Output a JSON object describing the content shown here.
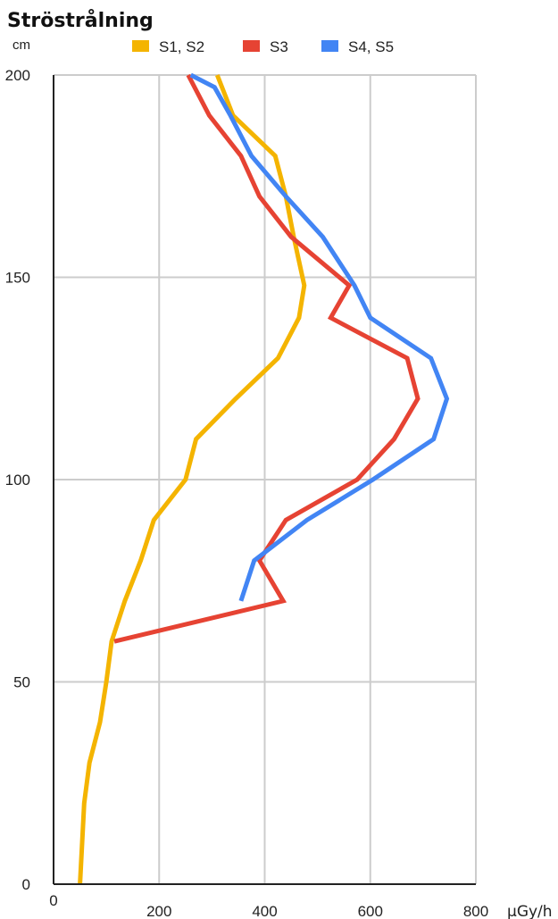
{
  "chart_data": {
    "type": "line",
    "title": "Ströstrålning",
    "ylabel": "cm",
    "xlabel": "µGy/h",
    "xlim": [
      0,
      800
    ],
    "ylim": [
      0,
      200
    ],
    "x_ticks": [
      0,
      200,
      400,
      600,
      800
    ],
    "y_ticks": [
      0,
      50,
      100,
      150,
      200
    ],
    "grid": true,
    "legend_position": "top",
    "series": [
      {
        "name": "S1, S2",
        "color": "#f4b400",
        "points": [
          {
            "x": 50,
            "y": 0
          },
          {
            "x": 58,
            "y": 20
          },
          {
            "x": 68,
            "y": 30
          },
          {
            "x": 88,
            "y": 40
          },
          {
            "x": 100,
            "y": 50
          },
          {
            "x": 110,
            "y": 60
          },
          {
            "x": 135,
            "y": 70
          },
          {
            "x": 165,
            "y": 80
          },
          {
            "x": 190,
            "y": 90
          },
          {
            "x": 250,
            "y": 100
          },
          {
            "x": 270,
            "y": 110
          },
          {
            "x": 345,
            "y": 120
          },
          {
            "x": 425,
            "y": 130
          },
          {
            "x": 465,
            "y": 140
          },
          {
            "x": 475,
            "y": 148
          },
          {
            "x": 455,
            "y": 160
          },
          {
            "x": 440,
            "y": 170
          },
          {
            "x": 420,
            "y": 180
          },
          {
            "x": 340,
            "y": 190
          },
          {
            "x": 310,
            "y": 200
          }
        ]
      },
      {
        "name": "S3",
        "color": "#e64333",
        "points": [
          {
            "x": 115,
            "y": 60
          },
          {
            "x": 435,
            "y": 70
          },
          {
            "x": 390,
            "y": 80
          },
          {
            "x": 440,
            "y": 90
          },
          {
            "x": 575,
            "y": 100
          },
          {
            "x": 645,
            "y": 110
          },
          {
            "x": 690,
            "y": 120
          },
          {
            "x": 670,
            "y": 130
          },
          {
            "x": 525,
            "y": 140
          },
          {
            "x": 560,
            "y": 148
          },
          {
            "x": 450,
            "y": 160
          },
          {
            "x": 390,
            "y": 170
          },
          {
            "x": 355,
            "y": 180
          },
          {
            "x": 295,
            "y": 190
          },
          {
            "x": 255,
            "y": 200
          }
        ]
      },
      {
        "name": "S4, S5",
        "color": "#4285f4",
        "points": [
          {
            "x": 355,
            "y": 70
          },
          {
            "x": 380,
            "y": 80
          },
          {
            "x": 480,
            "y": 90
          },
          {
            "x": 605,
            "y": 100
          },
          {
            "x": 720,
            "y": 110
          },
          {
            "x": 745,
            "y": 120
          },
          {
            "x": 715,
            "y": 130
          },
          {
            "x": 600,
            "y": 140
          },
          {
            "x": 570,
            "y": 148
          },
          {
            "x": 510,
            "y": 160
          },
          {
            "x": 440,
            "y": 170
          },
          {
            "x": 375,
            "y": 180
          },
          {
            "x": 335,
            "y": 190
          },
          {
            "x": 305,
            "y": 197
          },
          {
            "x": 260,
            "y": 200
          }
        ]
      }
    ]
  }
}
